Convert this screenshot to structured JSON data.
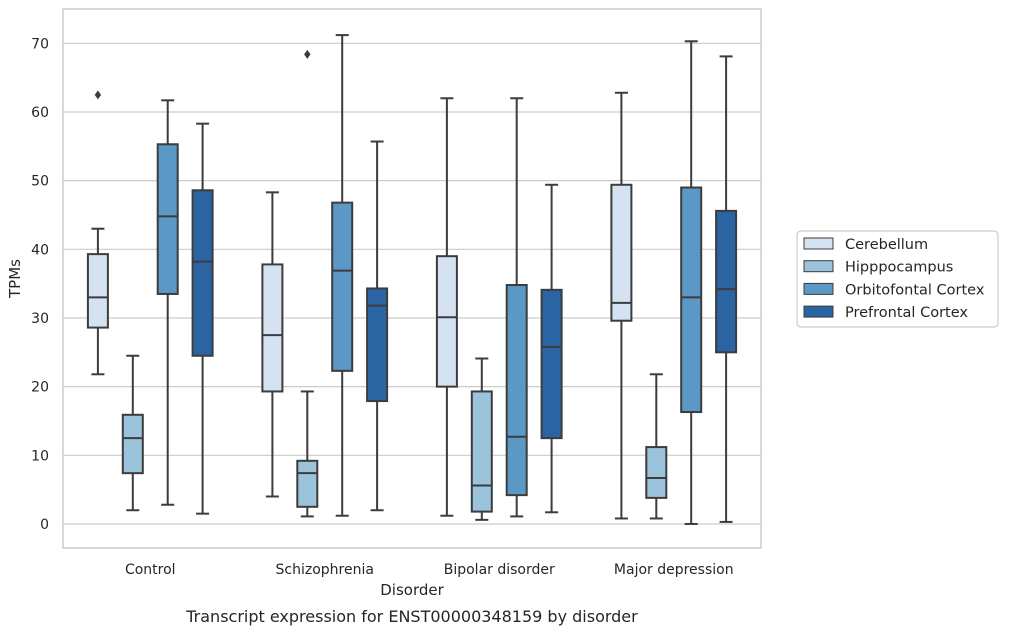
{
  "chart_data": {
    "type": "boxplot",
    "caption": "Transcript expression for ENST00000348159 by disorder",
    "xlabel": "Disorder",
    "ylabel": "TPMs",
    "ylim": [
      -3.5,
      75
    ],
    "yticks": [
      0,
      10,
      20,
      30,
      40,
      50,
      60,
      70
    ],
    "grid": true,
    "legend_position": "right",
    "categories": [
      "Control",
      "Schizophrenia",
      "Bipolar disorder",
      "Major depression"
    ],
    "series": [
      {
        "name": "Cerebellum",
        "color": "#d4e2f2",
        "boxes": [
          {
            "whisker_low": 21.8,
            "q1": 28.6,
            "median": 33.0,
            "q3": 39.3,
            "whisker_high": 43.0,
            "outliers": [
              62.5
            ]
          },
          {
            "whisker_low": 4.0,
            "q1": 19.3,
            "median": 27.5,
            "q3": 37.8,
            "whisker_high": 48.3,
            "outliers": []
          },
          {
            "whisker_low": 1.2,
            "q1": 20.0,
            "median": 30.1,
            "q3": 39.0,
            "whisker_high": 62.0,
            "outliers": []
          },
          {
            "whisker_low": 0.8,
            "q1": 29.6,
            "median": 32.2,
            "q3": 49.4,
            "whisker_high": 62.8,
            "outliers": []
          }
        ]
      },
      {
        "name": "Hipppocampus",
        "color": "#9bc3dc",
        "boxes": [
          {
            "whisker_low": 2.0,
            "q1": 7.4,
            "median": 12.5,
            "q3": 15.9,
            "whisker_high": 24.5,
            "outliers": []
          },
          {
            "whisker_low": 1.1,
            "q1": 2.5,
            "median": 7.4,
            "q3": 9.2,
            "whisker_high": 19.3,
            "outliers": [
              68.4
            ]
          },
          {
            "whisker_low": 0.6,
            "q1": 1.8,
            "median": 5.6,
            "q3": 19.3,
            "whisker_high": 24.1,
            "outliers": []
          },
          {
            "whisker_low": 0.8,
            "q1": 3.8,
            "median": 6.7,
            "q3": 11.2,
            "whisker_high": 21.8,
            "outliers": []
          }
        ]
      },
      {
        "name": "Orbitofontal Cortex",
        "color": "#5b98c6",
        "boxes": [
          {
            "whisker_low": 2.8,
            "q1": 33.5,
            "median": 44.8,
            "q3": 55.3,
            "whisker_high": 61.7,
            "outliers": []
          },
          {
            "whisker_low": 1.2,
            "q1": 22.3,
            "median": 36.9,
            "q3": 46.8,
            "whisker_high": 71.2,
            "outliers": []
          },
          {
            "whisker_low": 1.1,
            "q1": 4.2,
            "median": 12.7,
            "q3": 34.8,
            "whisker_high": 62.0,
            "outliers": []
          },
          {
            "whisker_low": 0.0,
            "q1": 16.3,
            "median": 33.0,
            "q3": 49.0,
            "whisker_high": 70.3,
            "outliers": []
          }
        ]
      },
      {
        "name": "Prefrontal Cortex",
        "color": "#2a64a3",
        "boxes": [
          {
            "whisker_low": 1.5,
            "q1": 24.5,
            "median": 38.2,
            "q3": 48.6,
            "whisker_high": 58.3,
            "outliers": []
          },
          {
            "whisker_low": 2.0,
            "q1": 17.9,
            "median": 31.8,
            "q3": 34.3,
            "whisker_high": 55.7,
            "outliers": []
          },
          {
            "whisker_low": 1.7,
            "q1": 12.5,
            "median": 25.8,
            "q3": 34.1,
            "whisker_high": 49.4,
            "outliers": []
          },
          {
            "whisker_low": 0.3,
            "q1": 25.0,
            "median": 34.2,
            "q3": 45.6,
            "whisker_high": 68.1,
            "outliers": []
          }
        ]
      }
    ]
  }
}
